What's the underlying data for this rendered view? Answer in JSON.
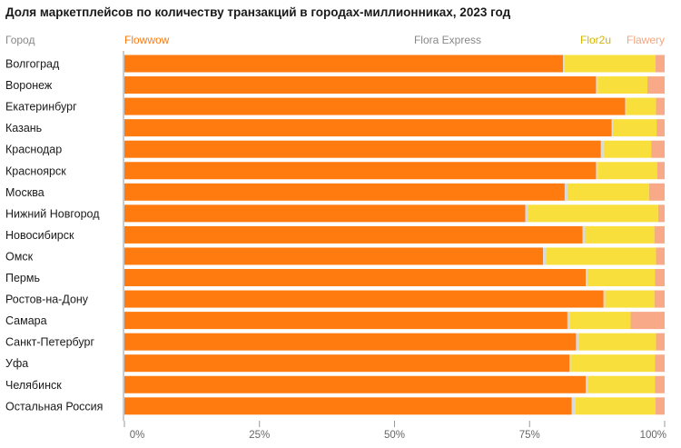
{
  "chart_data": {
    "type": "bar",
    "orientation": "horizontal",
    "stacked": true,
    "title": "Доля маркетплейсов по количеству транзакций в городах-миллионниках, 2023 год",
    "category_header": "Город",
    "categories": [
      "Волгоград",
      "Воронеж",
      "Екатеринбург",
      "Казань",
      "Краснодар",
      "Красноярск",
      "Москва",
      "Нижний Новгород",
      "Новосибирск",
      "Омск",
      "Пермь",
      "Ростов-на-Дону",
      "Самара",
      "Санкт-Петербург",
      "Уфа",
      "Челябинск",
      "Остальная Россия"
    ],
    "series": [
      {
        "name": "Flowwow",
        "color": "#ff7a0f",
        "values": [
          81.2,
          87.3,
          92.7,
          90.2,
          88.2,
          87.3,
          81.5,
          74.2,
          84.8,
          77.5,
          85.4,
          88.7,
          82.0,
          83.6,
          82.4,
          85.4,
          82.8
        ]
      },
      {
        "name": "Flora Express",
        "color": "#d9d9d9",
        "values": [
          0.2,
          0.3,
          0.2,
          0.2,
          0.5,
          0.3,
          0.5,
          0.5,
          0.5,
          0.5,
          0.3,
          0.3,
          0.4,
          0.6,
          0.2,
          0.4,
          0.7
        ]
      },
      {
        "name": "Flor2u",
        "color": "#f9df3b",
        "values": [
          16.9,
          9.2,
          5.5,
          8.1,
          8.8,
          11.0,
          15.1,
          24.1,
          12.8,
          20.4,
          12.5,
          9.1,
          11.3,
          14.2,
          15.6,
          12.4,
          14.8
        ]
      },
      {
        "name": "Flawery",
        "color": "#f8a987",
        "values": [
          1.7,
          3.2,
          1.6,
          1.5,
          2.5,
          1.4,
          2.9,
          1.2,
          1.9,
          1.6,
          1.8,
          1.9,
          6.3,
          1.6,
          1.8,
          1.8,
          1.7
        ]
      }
    ],
    "xlim": [
      0,
      100
    ],
    "xticks": [
      "0%",
      "25%",
      "50%",
      "75%",
      "100%"
    ],
    "grid": false,
    "legend": "top"
  }
}
